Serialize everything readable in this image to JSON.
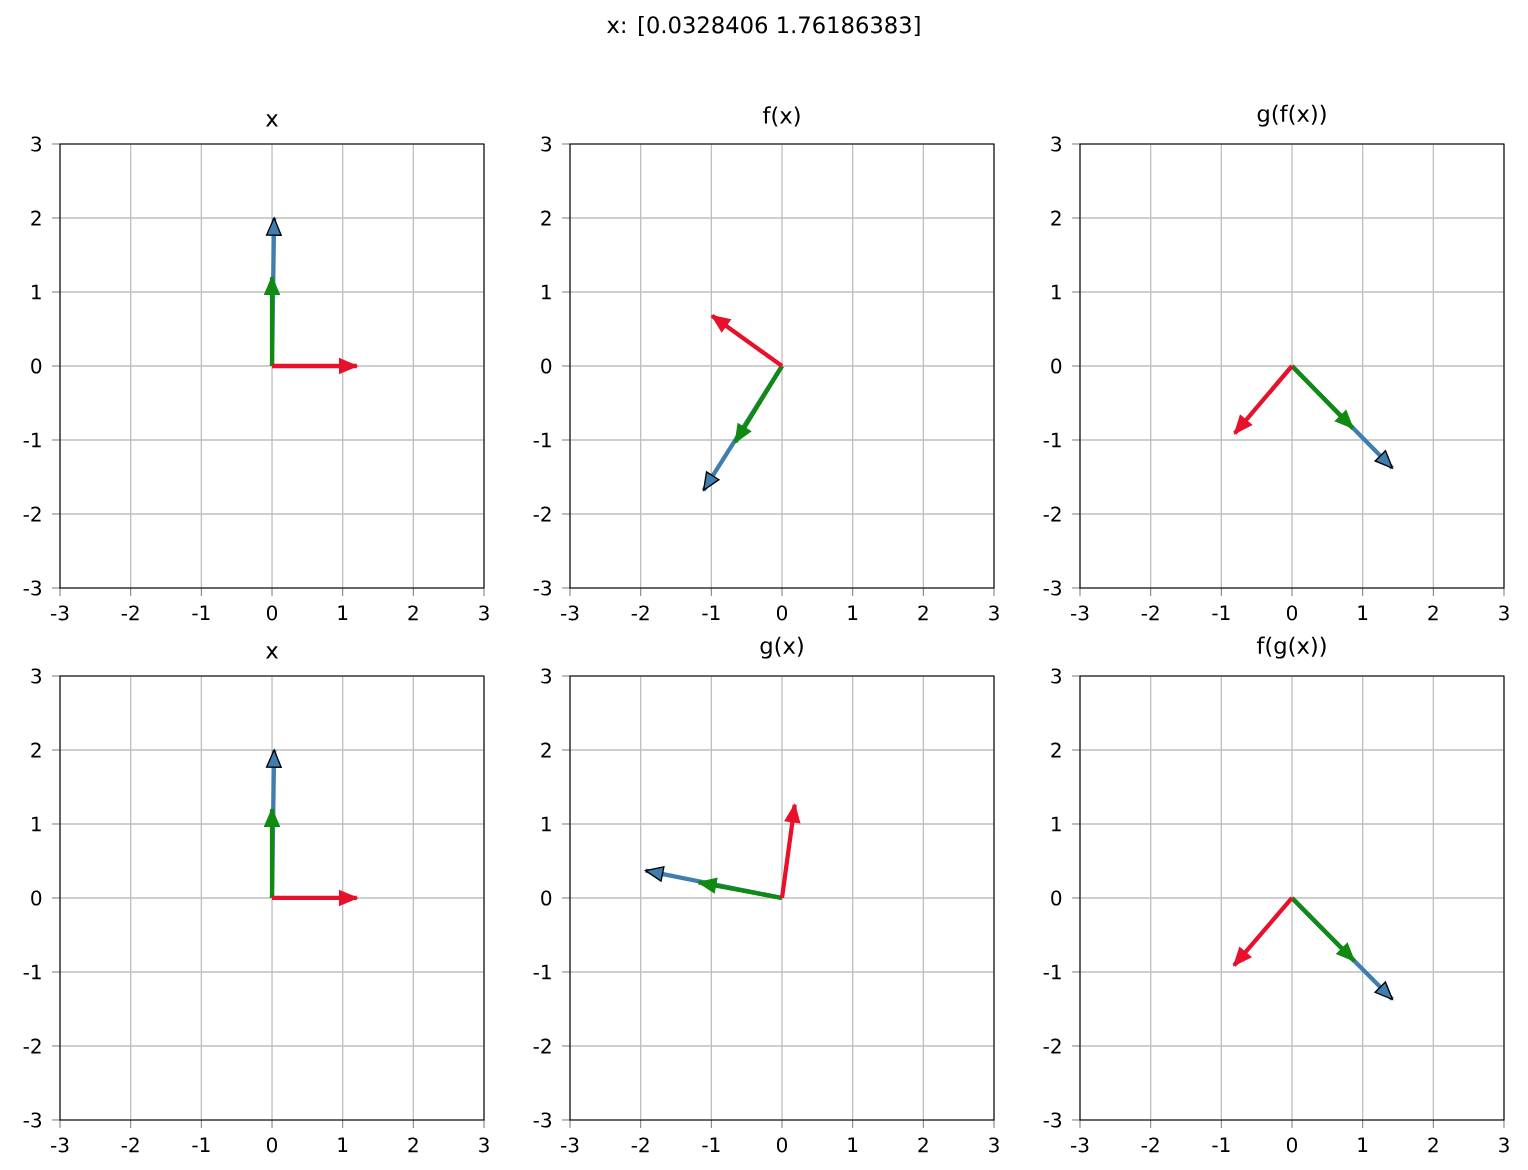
{
  "chart_data": [
    {
      "type": "line",
      "title": "x",
      "annotations": [
        "x: [0.0328406  1.76186383]"
      ],
      "xlim": [
        -3,
        3
      ],
      "ylim": [
        -3,
        3
      ],
      "xticks": [
        -3,
        -2,
        -1,
        0,
        1,
        2,
        3
      ],
      "yticks": [
        -3,
        -2,
        -1,
        0,
        1,
        2,
        3
      ],
      "grid": true,
      "series": [
        {
          "color": "#3f7fb0",
          "x": [
            0,
            0.03
          ],
          "values": [
            0,
            2.0
          ]
        },
        {
          "color": "#108a10",
          "x": [
            0,
            0
          ],
          "values": [
            0,
            1.2
          ]
        },
        {
          "color": "#e8102a",
          "x": [
            0,
            1.2
          ],
          "values": [
            0,
            0
          ]
        }
      ]
    },
    {
      "type": "line",
      "title": "f(x)",
      "xlim": [
        -3,
        3
      ],
      "ylim": [
        -3,
        3
      ],
      "xticks": [
        -3,
        -2,
        -1,
        0,
        1,
        2,
        3
      ],
      "yticks": [
        -3,
        -2,
        -1,
        0,
        1,
        2,
        3
      ],
      "grid": true,
      "series": [
        {
          "color": "#3f7fb0",
          "x": [
            0,
            -1.11
          ],
          "values": [
            0,
            -1.68
          ]
        },
        {
          "color": "#108a10",
          "x": [
            0,
            -0.66
          ],
          "values": [
            0,
            -1.03
          ]
        },
        {
          "color": "#e8102a",
          "x": [
            0,
            -0.99
          ],
          "values": [
            0,
            0.68
          ]
        }
      ]
    },
    {
      "type": "line",
      "title": "g(f(x))",
      "xlim": [
        -3,
        3
      ],
      "ylim": [
        -3,
        3
      ],
      "xticks": [
        -3,
        -2,
        -1,
        0,
        1,
        2,
        3
      ],
      "yticks": [
        -3,
        -2,
        -1,
        0,
        1,
        2,
        3
      ],
      "grid": true,
      "series": [
        {
          "color": "#3f7fb0",
          "x": [
            0,
            1.42
          ],
          "values": [
            0,
            -1.38
          ]
        },
        {
          "color": "#108a10",
          "x": [
            0,
            0.86
          ],
          "values": [
            0,
            -0.84
          ]
        },
        {
          "color": "#e8102a",
          "x": [
            0,
            -0.81
          ],
          "values": [
            0,
            -0.91
          ]
        }
      ]
    },
    {
      "type": "line",
      "title": "x",
      "xlim": [
        -3,
        3
      ],
      "ylim": [
        -3,
        3
      ],
      "xticks": [
        -3,
        -2,
        -1,
        0,
        1,
        2,
        3
      ],
      "yticks": [
        -3,
        -2,
        -1,
        0,
        1,
        2,
        3
      ],
      "grid": true,
      "series": [
        {
          "color": "#3f7fb0",
          "x": [
            0,
            0.03
          ],
          "values": [
            0,
            2.0
          ]
        },
        {
          "color": "#108a10",
          "x": [
            0,
            0
          ],
          "values": [
            0,
            1.2
          ]
        },
        {
          "color": "#e8102a",
          "x": [
            0,
            1.2
          ],
          "values": [
            0,
            0
          ]
        }
      ]
    },
    {
      "type": "line",
      "title": "g(x)",
      "xlim": [
        -3,
        3
      ],
      "ylim": [
        -3,
        3
      ],
      "xticks": [
        -3,
        -2,
        -1,
        0,
        1,
        2,
        3
      ],
      "yticks": [
        -3,
        -2,
        -1,
        0,
        1,
        2,
        3
      ],
      "grid": true,
      "series": [
        {
          "color": "#3f7fb0",
          "x": [
            0,
            -1.93
          ],
          "values": [
            0,
            0.37
          ]
        },
        {
          "color": "#108a10",
          "x": [
            0,
            -1.18
          ],
          "values": [
            0,
            0.21
          ]
        },
        {
          "color": "#e8102a",
          "x": [
            0,
            0.18
          ],
          "values": [
            0,
            1.26
          ]
        }
      ]
    },
    {
      "type": "line",
      "title": "f(g(x))",
      "xlim": [
        -3,
        3
      ],
      "ylim": [
        -3,
        3
      ],
      "xticks": [
        -3,
        -2,
        -1,
        0,
        1,
        2,
        3
      ],
      "yticks": [
        -3,
        -2,
        -1,
        0,
        1,
        2,
        3
      ],
      "grid": true,
      "series": [
        {
          "color": "#3f7fb0",
          "x": [
            0,
            1.42
          ],
          "values": [
            0,
            -1.37
          ]
        },
        {
          "color": "#108a10",
          "x": [
            0,
            0.88
          ],
          "values": [
            0,
            -0.85
          ]
        },
        {
          "color": "#e8102a",
          "x": [
            0,
            -0.82
          ],
          "values": [
            0,
            -0.91
          ]
        }
      ]
    }
  ]
}
